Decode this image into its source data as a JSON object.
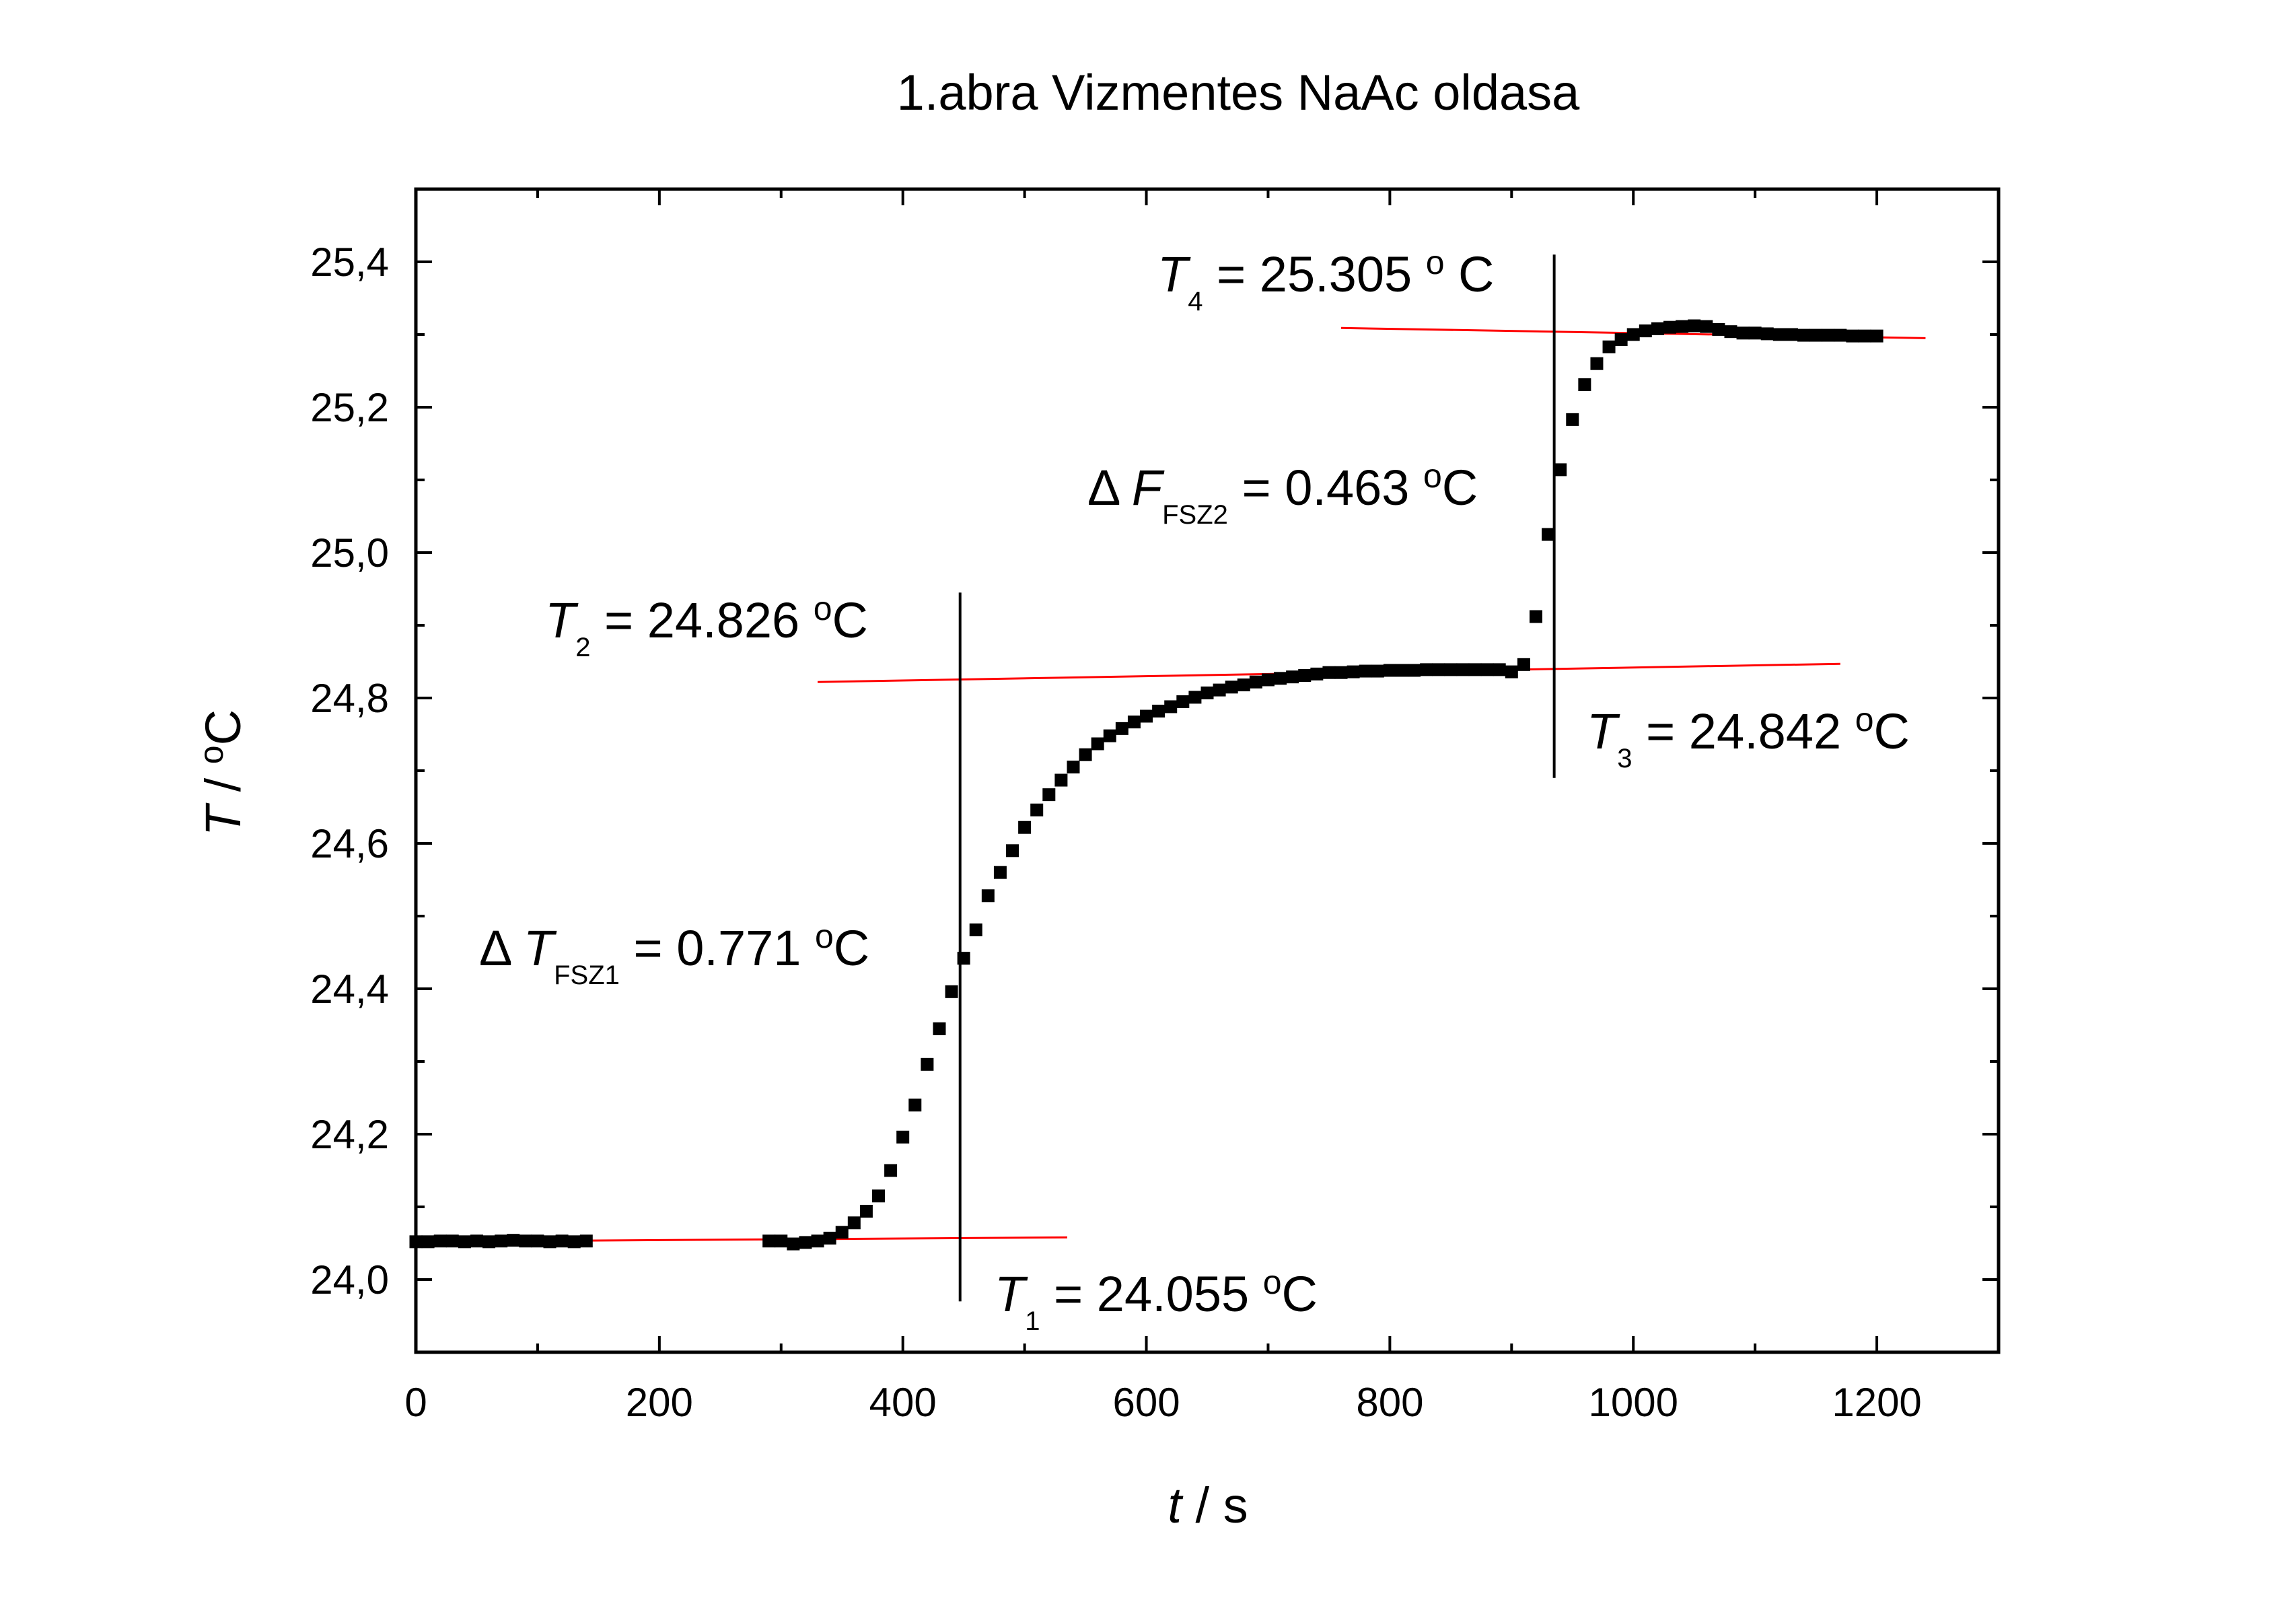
{
  "chart_data": {
    "type": "scatter",
    "title": "1.abra Vizmentes NaAc oldasa",
    "xlabel": {
      "var": "t",
      "unit": " / s"
    },
    "ylabel": {
      "var": "T",
      "unit": " / ",
      "deg": "o",
      "unit2": "C"
    },
    "xlim": [
      0,
      1300
    ],
    "ylim": [
      23.9,
      25.5
    ],
    "xticks": [
      0,
      200,
      400,
      600,
      800,
      1000,
      1200
    ],
    "xtick_labels": [
      "0",
      "200",
      "400",
      "600",
      "800",
      "1000",
      "1200"
    ],
    "yticks": [
      24.0,
      24.2,
      24.4,
      24.6,
      24.8,
      25.0,
      25.2,
      25.4
    ],
    "ytick_labels": [
      "24,0",
      "24,2",
      "24,4",
      "24,6",
      "24,8",
      "25,0",
      "25,2",
      "25,4"
    ],
    "grid": false,
    "marker_color": "#000000",
    "fit_line_color": "#ff0000",
    "series": [
      {
        "points": [
          [
            0,
            24.052
          ],
          [
            10,
            24.052
          ],
          [
            20,
            24.053
          ],
          [
            30,
            24.053
          ],
          [
            40,
            24.052
          ],
          [
            50,
            24.053
          ],
          [
            60,
            24.052
          ],
          [
            70,
            24.053
          ],
          [
            80,
            24.054
          ],
          [
            90,
            24.053
          ],
          [
            100,
            24.053
          ],
          [
            110,
            24.052
          ],
          [
            120,
            24.053
          ],
          [
            130,
            24.052
          ],
          [
            140,
            24.053
          ],
          [
            290,
            24.053
          ],
          [
            300,
            24.053
          ],
          [
            310,
            24.049
          ],
          [
            320,
            24.051
          ],
          [
            330,
            24.053
          ],
          [
            340,
            24.057
          ],
          [
            350,
            24.065
          ],
          [
            360,
            24.078
          ],
          [
            370,
            24.094
          ],
          [
            380,
            24.115
          ],
          [
            390,
            24.15
          ],
          [
            400,
            24.196
          ],
          [
            410,
            24.24
          ],
          [
            420,
            24.296
          ],
          [
            430,
            24.345
          ],
          [
            440,
            24.396
          ],
          [
            450,
            24.442
          ],
          [
            460,
            24.481
          ],
          [
            470,
            24.528
          ],
          [
            480,
            24.56
          ],
          [
            490,
            24.59
          ],
          [
            500,
            24.622
          ],
          [
            510,
            24.646
          ],
          [
            520,
            24.667
          ],
          [
            530,
            24.687
          ],
          [
            540,
            24.705
          ],
          [
            550,
            24.722
          ],
          [
            560,
            24.737
          ],
          [
            570,
            24.748
          ],
          [
            580,
            24.758
          ],
          [
            590,
            24.767
          ],
          [
            600,
            24.775
          ],
          [
            610,
            24.782
          ],
          [
            620,
            24.788
          ],
          [
            630,
            24.795
          ],
          [
            640,
            24.801
          ],
          [
            650,
            24.807
          ],
          [
            660,
            24.811
          ],
          [
            670,
            24.815
          ],
          [
            680,
            24.818
          ],
          [
            690,
            24.822
          ],
          [
            700,
            24.825
          ],
          [
            710,
            24.827
          ],
          [
            720,
            24.829
          ],
          [
            730,
            24.831
          ],
          [
            740,
            24.833
          ],
          [
            750,
            24.835
          ],
          [
            760,
            24.835
          ],
          [
            770,
            24.836
          ],
          [
            780,
            24.837
          ],
          [
            790,
            24.837
          ],
          [
            800,
            24.838
          ],
          [
            810,
            24.838
          ],
          [
            820,
            24.838
          ],
          [
            830,
            24.839
          ],
          [
            840,
            24.839
          ],
          [
            850,
            24.839
          ],
          [
            860,
            24.839
          ],
          [
            870,
            24.839
          ],
          [
            880,
            24.839
          ],
          [
            890,
            24.839
          ],
          [
            900,
            24.836
          ],
          [
            910,
            24.846
          ],
          [
            920,
            24.912
          ],
          [
            930,
            25.025
          ],
          [
            940,
            25.114
          ],
          [
            950,
            25.183
          ],
          [
            960,
            25.231
          ],
          [
            970,
            25.26
          ],
          [
            980,
            25.283
          ],
          [
            990,
            25.293
          ],
          [
            1000,
            25.3
          ],
          [
            1010,
            25.305
          ],
          [
            1020,
            25.308
          ],
          [
            1030,
            25.31
          ],
          [
            1040,
            25.311
          ],
          [
            1050,
            25.312
          ],
          [
            1060,
            25.311
          ],
          [
            1070,
            25.307
          ],
          [
            1080,
            25.304
          ],
          [
            1090,
            25.302
          ],
          [
            1100,
            25.302
          ],
          [
            1110,
            25.301
          ],
          [
            1120,
            25.3
          ],
          [
            1130,
            25.3
          ],
          [
            1140,
            25.299
          ],
          [
            1150,
            25.299
          ],
          [
            1160,
            25.299
          ],
          [
            1170,
            25.299
          ],
          [
            1180,
            25.298
          ],
          [
            1190,
            25.298
          ],
          [
            1200,
            25.298
          ]
        ]
      }
    ],
    "fit_lines": [
      {
        "x": [
          0,
          535
        ],
        "y": [
          24.052,
          24.058
        ]
      },
      {
        "x": [
          330,
          1170
        ],
        "y": [
          24.822,
          24.847
        ]
      },
      {
        "x": [
          760,
          1240
        ],
        "y": [
          25.309,
          25.295
        ]
      }
    ],
    "vertical_lines": [
      {
        "x": 447,
        "y": [
          23.97,
          24.945
        ]
      },
      {
        "x": 935,
        "y": [
          24.69,
          25.41
        ]
      }
    ],
    "annotations": [
      {
        "prefix": "",
        "var": "T",
        "sub": "1",
        "text": " = 24.055 ",
        "deg": "o",
        "unit": "C"
      },
      {
        "prefix": "",
        "var": "T",
        "sub": "2",
        "text": " = 24.826 ",
        "deg": "o",
        "unit": "C"
      },
      {
        "prefix": "",
        "var": "T",
        "sub": "3",
        "text": " = 24.842 ",
        "deg": "o",
        "unit": "C"
      },
      {
        "prefix": "",
        "var": "T",
        "sub": "4",
        "text": " = 25.305 ",
        "deg": "o",
        "unit": " C"
      },
      {
        "prefix": "Δ ",
        "var": "T",
        "sub": "FSZ1",
        "text": " = 0.771 ",
        "deg": "o",
        "unit": "C"
      },
      {
        "prefix": "Δ ",
        "var": "F",
        "sub": "FSZ2",
        "text": " = 0.463 ",
        "deg": "o",
        "unit": "C"
      }
    ]
  }
}
